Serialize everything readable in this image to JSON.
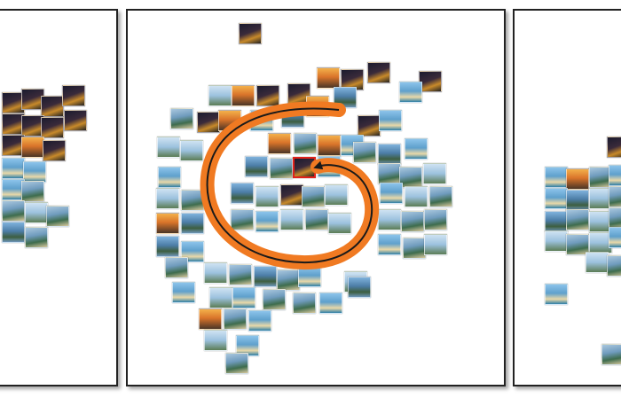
{
  "colors": {
    "panel_border": "#222222",
    "spiral_orange": "#f07a22",
    "spiral_arrow": "#1a1a1a",
    "selected_border": "#e0221b"
  },
  "panels": [
    {
      "name": "previous-view",
      "role": "partially visible"
    },
    {
      "name": "current-view",
      "role": "main"
    },
    {
      "name": "next-view",
      "role": "partially visible"
    }
  ],
  "photo_themes": [
    "night-city",
    "sunset",
    "beach-daylight",
    "christ-redeemer",
    "sugarloaf",
    "bay-aerial"
  ]
}
